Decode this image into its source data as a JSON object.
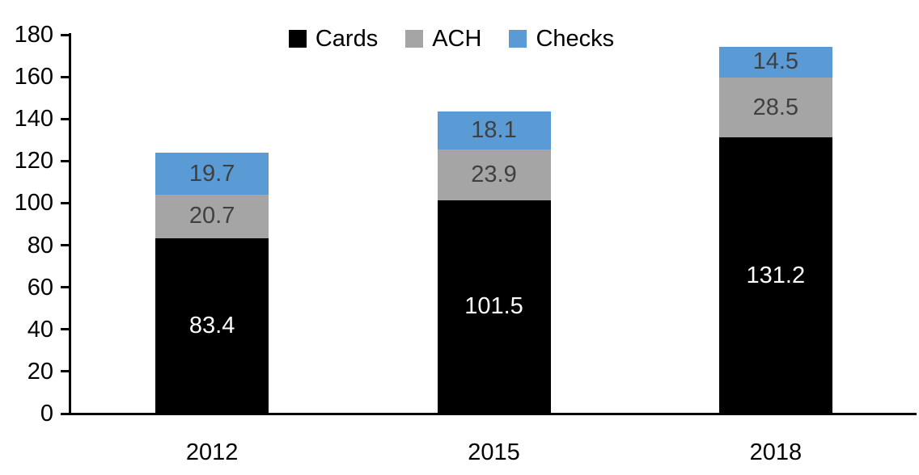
{
  "chart_data": {
    "type": "bar",
    "stacked": true,
    "title": "",
    "xlabel": "",
    "ylabel": "",
    "categories": [
      "2012",
      "2015",
      "2018"
    ],
    "series": [
      {
        "name": "Cards",
        "color": "#000000",
        "label_color": "#FFFFFF",
        "values": [
          83.4,
          101.5,
          131.2
        ]
      },
      {
        "name": "ACH",
        "color": "#A5A5A5",
        "label_color": "#404040",
        "values": [
          20.7,
          23.9,
          28.5
        ]
      },
      {
        "name": "Checks",
        "color": "#5B9BD5",
        "label_color": "#404040",
        "values": [
          19.7,
          18.1,
          14.5
        ]
      }
    ],
    "ylim": [
      0,
      180
    ],
    "yticks": [
      0,
      20,
      40,
      60,
      80,
      100,
      120,
      140,
      160,
      180
    ],
    "grid": false,
    "legend_position": "top",
    "axis_color": "#000000",
    "background_color": "#FFFFFF"
  }
}
